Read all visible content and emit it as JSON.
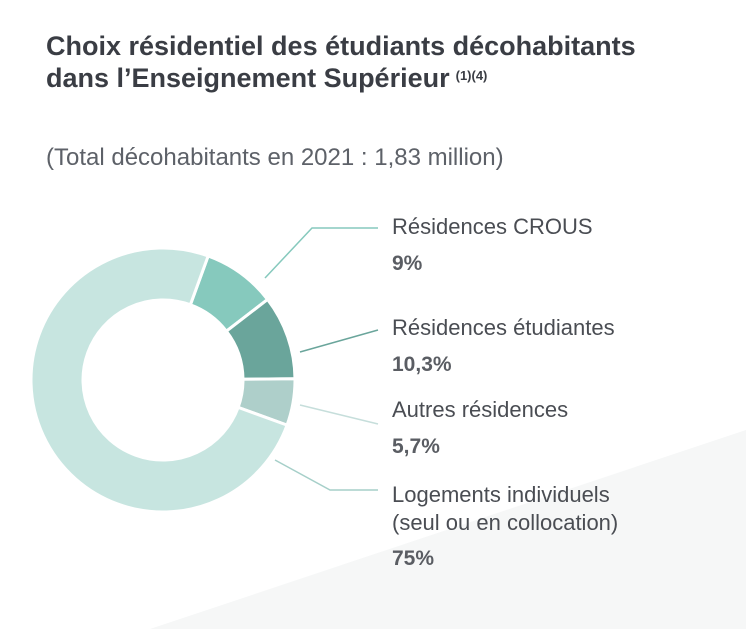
{
  "title": "Choix résidentiel des étudiants décohabitants dans l’Enseignement Supérieur",
  "title_note": "(1)(4)",
  "subtitle": "(Total décohabitants en 2021 : 1,83 million)",
  "chart_data": {
    "type": "pie",
    "donut": true,
    "slices": [
      {
        "label": "Résidences CROUS",
        "value": 9,
        "value_label": "9%",
        "color": "#86c9bd"
      },
      {
        "label": "Résidences étudiantes",
        "value": 10.3,
        "value_label": "10,3%",
        "color": "#6aa59b"
      },
      {
        "label": "Autres résidences",
        "value": 5.7,
        "value_label": "5,7%",
        "color": "#aecfca"
      },
      {
        "label": "Logements individuels\n(seul ou en collocation)",
        "value": 75,
        "value_label": "75%",
        "color": "#c7e5e0"
      }
    ]
  }
}
